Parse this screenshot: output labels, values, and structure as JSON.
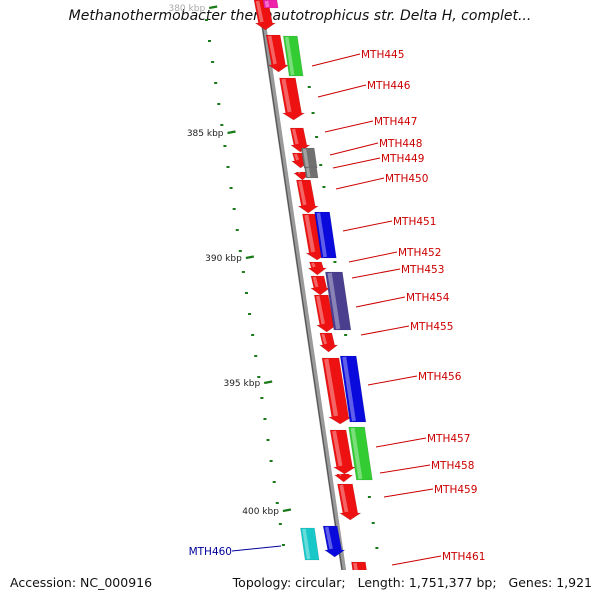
{
  "title": "Methanothermobacter thermautotrophicus str. Delta H, complet...",
  "accession": "Accession: NC_000916",
  "footer": {
    "topology": "Topology: circular;",
    "length": "Length: 1,751,377 bp;",
    "genes": "Genes: 1,921"
  },
  "ticks_major": [
    {
      "label": "380 kbp"
    },
    {
      "label": "385 kbp"
    },
    {
      "label": "390 kbp"
    },
    {
      "label": "395 kbp"
    },
    {
      "label": "400 kbp"
    }
  ],
  "colors": {
    "red": "#ee1111",
    "green": "#33cc33",
    "blue": "#0a0add",
    "gray": "#707070",
    "slate": "#4a3f8f",
    "cyan": "#18c8c8",
    "magenta": "#ee22aa",
    "label_red": "#cc0000",
    "label_blue": "#000099",
    "tick_green": "#1a7a1a"
  },
  "genes": [
    {
      "label": "MTH445"
    },
    {
      "label": "MTH446"
    },
    {
      "label": "MTH447"
    },
    {
      "label": "MTH448"
    },
    {
      "label": "MTH449"
    },
    {
      "label": "MTH450"
    },
    {
      "label": "MTH451"
    },
    {
      "label": "MTH452"
    },
    {
      "label": "MTH453"
    },
    {
      "label": "MTH454"
    },
    {
      "label": "MTH455"
    },
    {
      "label": "MTH456"
    },
    {
      "label": "MTH457"
    },
    {
      "label": "MTH458"
    },
    {
      "label": "MTH459"
    },
    {
      "label": "MTH460"
    },
    {
      "label": "MTH461"
    }
  ]
}
